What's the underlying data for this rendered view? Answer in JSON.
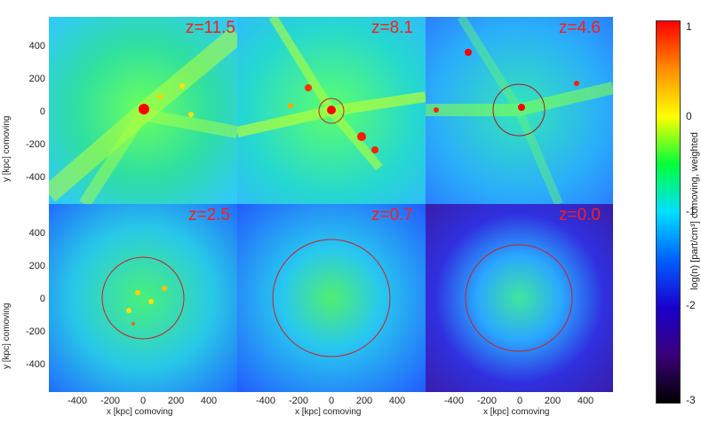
{
  "panels": [
    {
      "redshift": "z=11.5"
    },
    {
      "redshift": "z=8.1"
    },
    {
      "redshift": "z=4.6"
    },
    {
      "redshift": "z=2.5"
    },
    {
      "redshift": "z=0.7"
    },
    {
      "redshift": "z=0.0"
    }
  ],
  "axes": {
    "x_ticks": [
      "-400",
      "-200",
      "0",
      "200",
      "400"
    ],
    "y_ticks": [
      "400",
      "200",
      "0",
      "-200",
      "-400"
    ],
    "x_label": "x [kpc] comoving",
    "y_label": "y [kpc] comoving"
  },
  "colorbar": {
    "ticks": [
      "1",
      "0",
      "-1",
      "-2",
      "-3"
    ],
    "label": "log(n) [part/cm³] comoving, weighted",
    "colors": [
      "#ff0000",
      "#ff8c00",
      "#ffff00",
      "#00ff3a",
      "#00dfff",
      "#0060ff",
      "#1a00cc",
      "#3a007a",
      "#000000"
    ]
  }
}
